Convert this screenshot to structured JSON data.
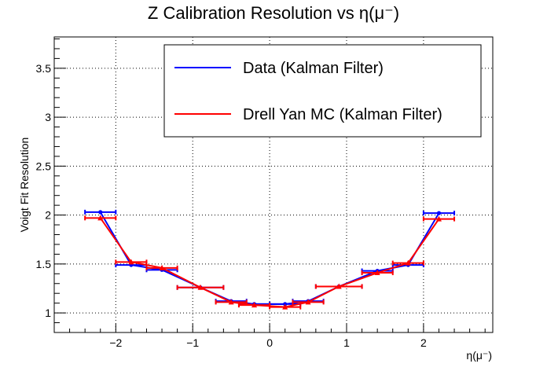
{
  "chart_data": {
    "type": "line",
    "title": "Z Calibration Resolution vs η(μ⁻)",
    "xlabel": "η(μ⁻)",
    "ylabel": "Voigt Fit Resolution",
    "xlim": [
      -2.8,
      2.9
    ],
    "ylim": [
      0.8,
      3.82
    ],
    "grid": true,
    "legend_position": "top-right",
    "x_ticks": [
      -2,
      -1,
      0,
      1,
      2
    ],
    "x_tick_labels": [
      "−2",
      "−1",
      "0",
      "1",
      "2"
    ],
    "y_ticks": [
      1,
      1.5,
      2,
      2.5,
      3,
      3.5
    ],
    "y_tick_labels": [
      "1",
      "1.5",
      "2",
      "2.5",
      "3",
      "3.5"
    ],
    "series": [
      {
        "name": "Data (Kalman Filter)",
        "color": "#0000ff",
        "marker": "circle",
        "x": [
          -2.2,
          -1.8,
          -1.4,
          -0.9,
          -0.5,
          -0.2,
          0.2,
          0.5,
          0.9,
          1.4,
          1.8,
          2.2
        ],
        "xerr": [
          0.2,
          0.2,
          0.2,
          0.3,
          0.2,
          0.2,
          0.2,
          0.2,
          0.3,
          0.2,
          0.2,
          0.2
        ],
        "y": [
          2.03,
          1.49,
          1.44,
          1.26,
          1.12,
          1.09,
          1.09,
          1.12,
          1.27,
          1.43,
          1.49,
          2.02
        ]
      },
      {
        "name": "Drell Yan MC (Kalman Filter)",
        "color": "#ff0000",
        "marker": "triangle",
        "x": [
          -2.2,
          -1.8,
          -1.4,
          -0.9,
          -0.5,
          -0.2,
          0.2,
          0.5,
          0.9,
          1.4,
          1.8,
          2.2
        ],
        "xerr": [
          0.2,
          0.2,
          0.2,
          0.3,
          0.2,
          0.2,
          0.2,
          0.2,
          0.3,
          0.2,
          0.2,
          0.2
        ],
        "y": [
          1.97,
          1.52,
          1.46,
          1.26,
          1.11,
          1.08,
          1.06,
          1.11,
          1.27,
          1.41,
          1.51,
          1.96
        ]
      }
    ]
  }
}
